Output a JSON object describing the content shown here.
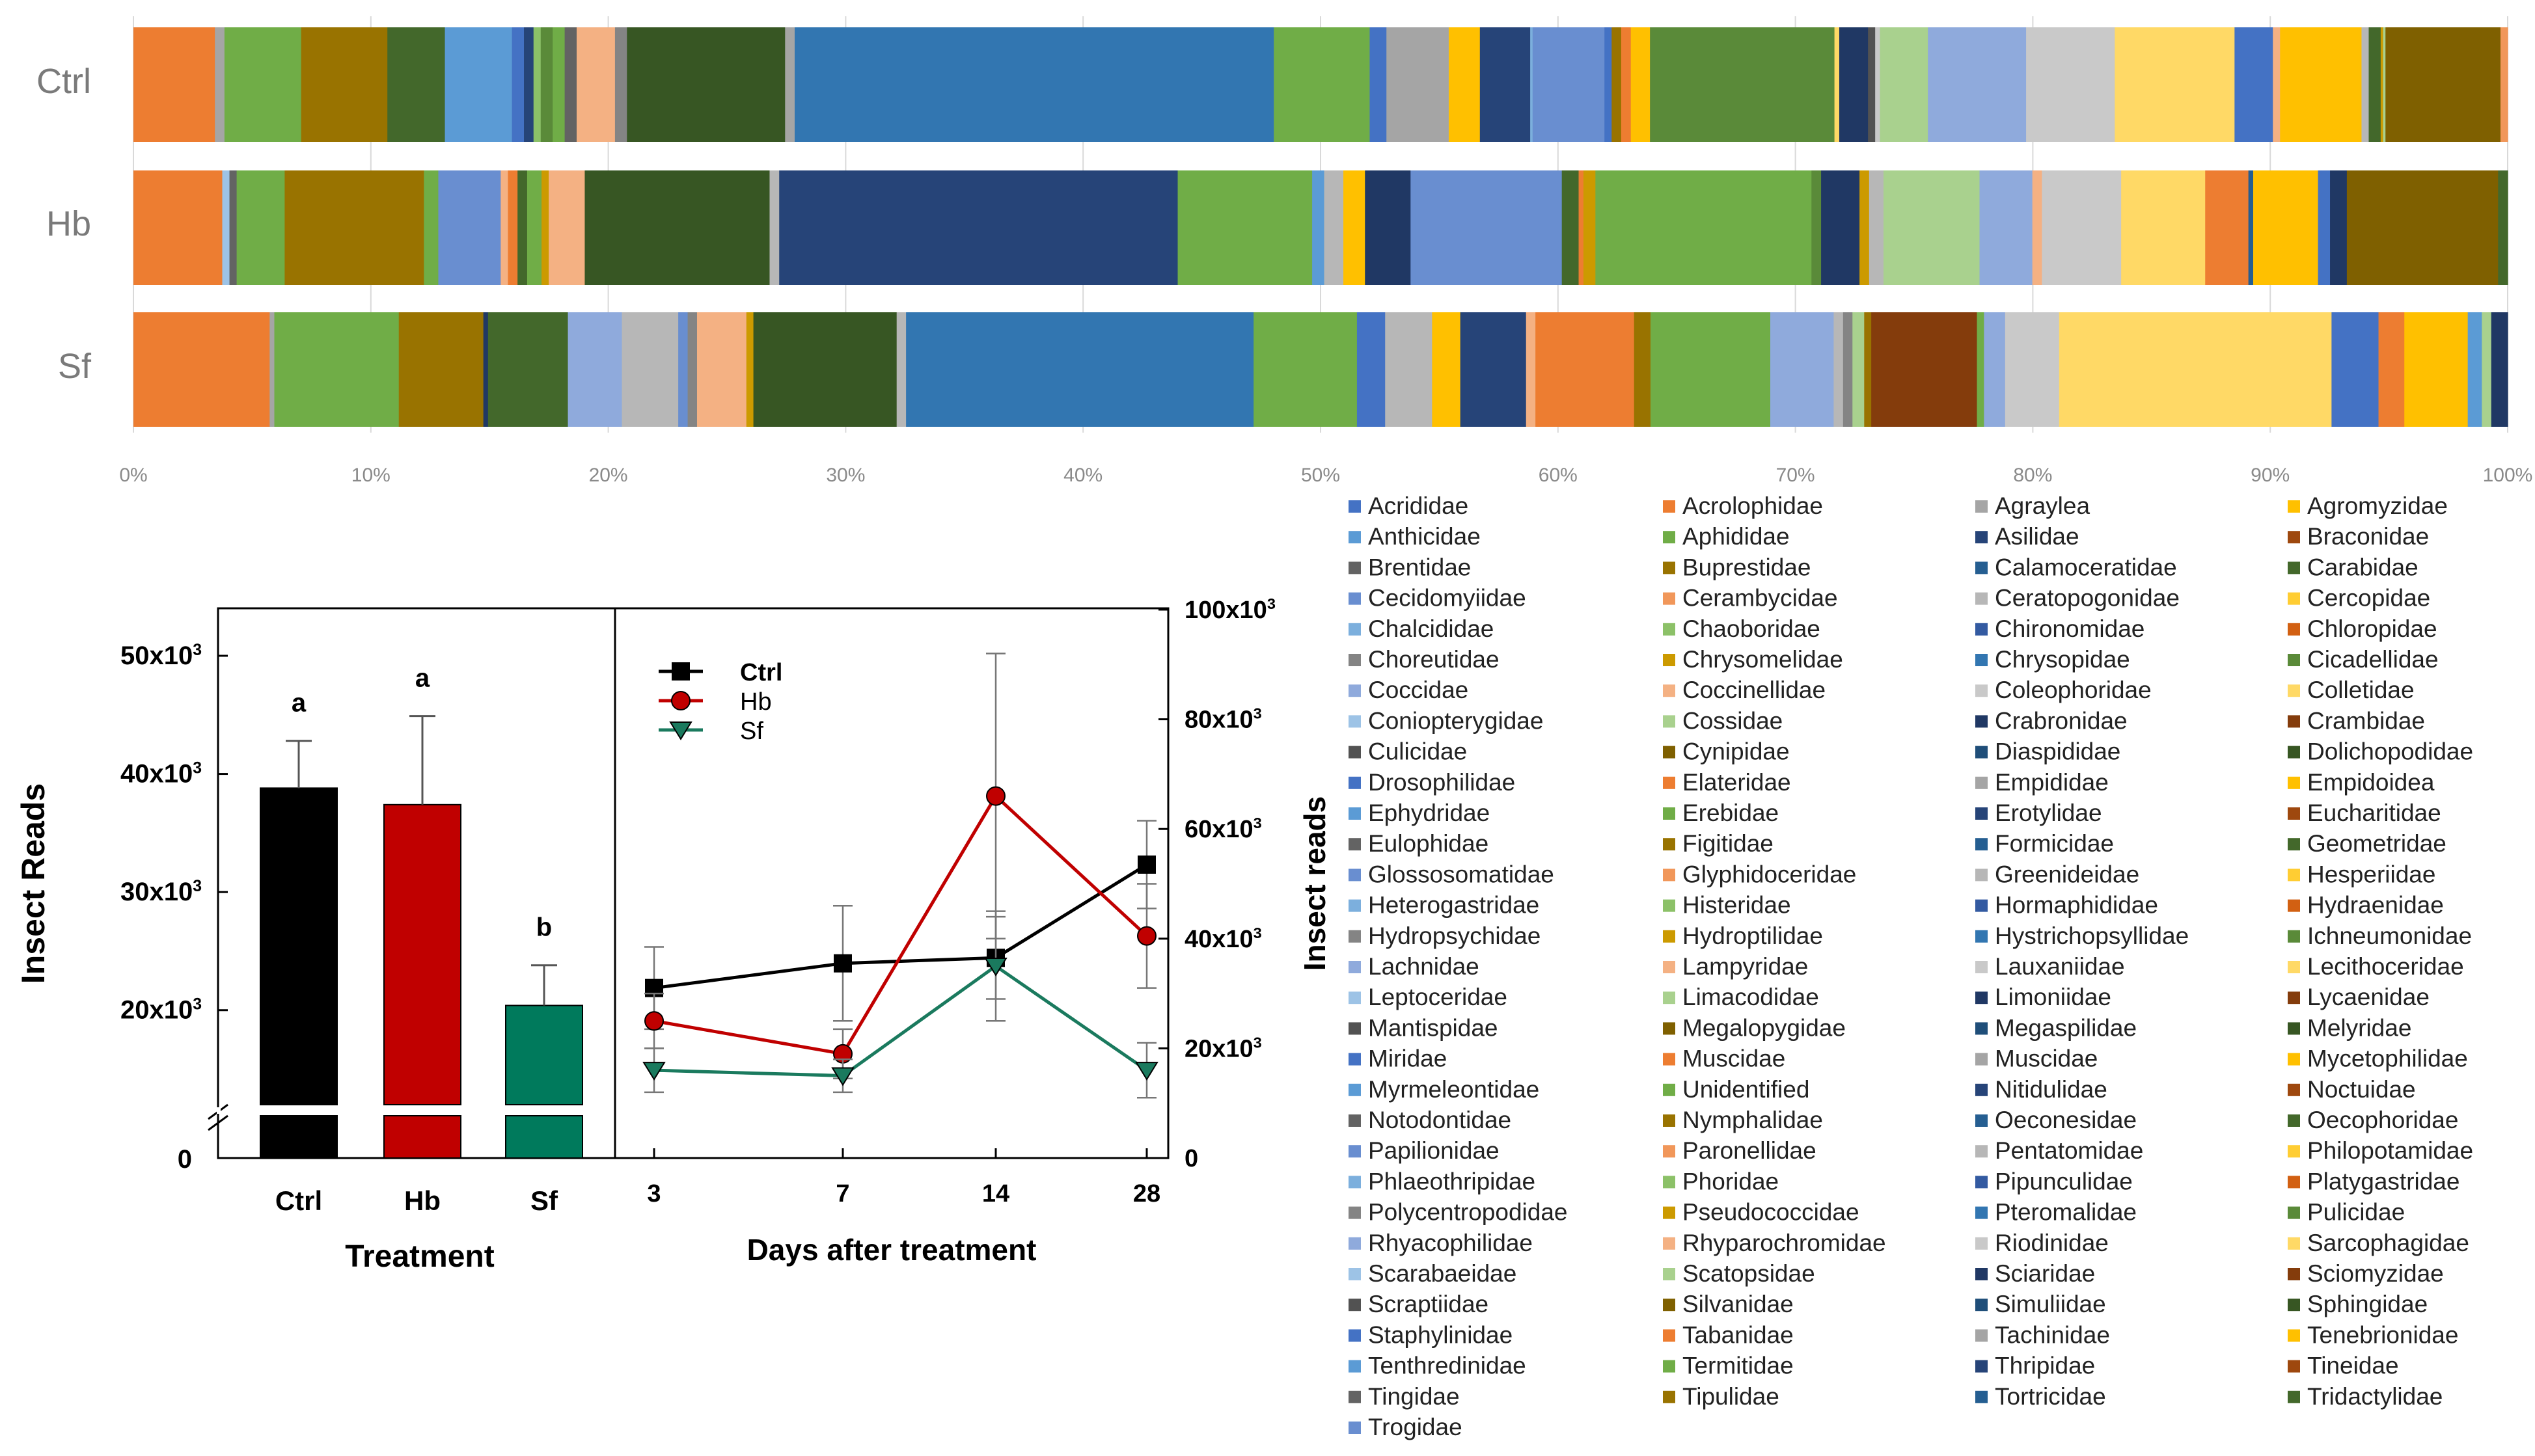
{
  "chart_data": [
    {
      "type": "stacked-bar-horizontal",
      "title": "",
      "xlabel": "",
      "ylabel": "",
      "xlim": [
        0,
        100
      ],
      "xticks": [
        "0%",
        "10%",
        "20%",
        "30%",
        "40%",
        "50%",
        "60%",
        "70%",
        "80%",
        "90%",
        "100%"
      ],
      "rows": [
        "Ctrl",
        "Hb",
        "Sf"
      ],
      "palette": [
        "#4472C4",
        "#ED7D31",
        "#A5A5A5",
        "#FFC000",
        "#5B9BD5",
        "#70AD47",
        "#264478",
        "#9E480E",
        "#636363",
        "#997300",
        "#255E91",
        "#43682B",
        "#698ED0",
        "#F1975A",
        "#B7B7B7",
        "#FFCD33",
        "#7CAFDD",
        "#8CC168",
        "#335AA1",
        "#D26012",
        "#848484",
        "#CC9A00",
        "#3276B1",
        "#5A8A39",
        "#8FAADC",
        "#F4B183",
        "#C9C9C9",
        "#FFD966",
        "#9DC3E6",
        "#A9D18E",
        "#203864",
        "#843C0C",
        "#525252",
        "#7F6000",
        "#1F4E79",
        "#375623"
      ],
      "segments": {
        "Ctrl": [
          [
            1,
            3.0
          ],
          [
            1,
            0.4
          ],
          [
            2,
            0.4
          ],
          [
            5,
            3.2
          ],
          [
            9,
            3.6
          ],
          [
            11,
            2.4
          ],
          [
            4,
            2.8
          ],
          [
            0,
            0.5
          ],
          [
            6,
            0.4
          ],
          [
            17,
            0.3
          ],
          [
            23,
            0.5
          ],
          [
            5,
            0.5
          ],
          [
            8,
            0.5
          ],
          [
            25,
            1.6
          ],
          [
            20,
            0.5
          ],
          [
            35,
            6.6
          ],
          [
            2,
            0.4
          ],
          [
            22,
            20.0
          ],
          [
            5,
            4.0
          ],
          [
            0,
            0.7
          ],
          [
            2,
            2.6
          ],
          [
            3,
            1.3
          ],
          [
            6,
            2.1
          ],
          [
            16,
            0.1
          ],
          [
            12,
            3.0
          ],
          [
            0,
            0.3
          ],
          [
            9,
            0.4
          ],
          [
            1,
            0.4
          ],
          [
            3,
            0.8
          ],
          [
            23,
            7.7
          ],
          [
            27,
            0.2
          ],
          [
            30,
            1.2
          ],
          [
            32,
            0.3
          ],
          [
            26,
            0.2
          ],
          [
            29,
            2.0
          ],
          [
            24,
            4.1
          ],
          [
            26,
            3.7
          ],
          [
            27,
            5.0
          ],
          [
            0,
            1.6
          ],
          [
            25,
            0.3
          ],
          [
            3,
            3.4
          ],
          [
            14,
            0.3
          ],
          [
            11,
            0.5
          ],
          [
            21,
            0.1
          ],
          [
            29,
            0.1
          ],
          [
            33,
            4.8
          ],
          [
            13,
            0.3
          ]
        ],
        "Hb": [
          [
            1,
            3.7
          ],
          [
            28,
            0.3
          ],
          [
            8,
            0.3
          ],
          [
            5,
            2.0
          ],
          [
            9,
            5.8
          ],
          [
            5,
            0.6
          ],
          [
            12,
            2.6
          ],
          [
            25,
            0.3
          ],
          [
            1,
            0.4
          ],
          [
            11,
            0.4
          ],
          [
            5,
            0.6
          ],
          [
            21,
            0.3
          ],
          [
            25,
            1.5
          ],
          [
            35,
            7.7
          ],
          [
            14,
            0.4
          ],
          [
            6,
            16.6
          ],
          [
            5,
            5.6
          ],
          [
            4,
            0.5
          ],
          [
            14,
            0.8
          ],
          [
            3,
            0.9
          ],
          [
            30,
            1.9
          ],
          [
            12,
            0.2
          ],
          [
            12,
            6.1
          ],
          [
            11,
            0.7
          ],
          [
            1,
            0.2
          ],
          [
            21,
            0.5
          ],
          [
            5,
            9.0
          ],
          [
            23,
            0.4
          ],
          [
            30,
            1.6
          ],
          [
            21,
            0.4
          ],
          [
            14,
            0.6
          ],
          [
            29,
            4.0
          ],
          [
            24,
            2.2
          ],
          [
            25,
            0.4
          ],
          [
            26,
            3.3
          ],
          [
            27,
            3.5
          ],
          [
            1,
            1.8
          ],
          [
            10,
            0.2
          ],
          [
            3,
            2.7
          ],
          [
            0,
            0.5
          ],
          [
            30,
            0.7
          ],
          [
            33,
            6.3
          ],
          [
            11,
            0.4
          ]
        ],
        "Sf": [
          [
            1,
            5.5
          ],
          [
            1,
            0.3
          ],
          [
            2,
            0.2
          ],
          [
            5,
            5.3
          ],
          [
            9,
            3.6
          ],
          [
            30,
            0.2
          ],
          [
            11,
            3.4
          ],
          [
            24,
            2.3
          ],
          [
            14,
            2.4
          ],
          [
            12,
            0.4
          ],
          [
            20,
            0.4
          ],
          [
            25,
            2.1
          ],
          [
            21,
            0.3
          ],
          [
            35,
            6.1
          ],
          [
            14,
            0.4
          ],
          [
            22,
            14.8
          ],
          [
            5,
            4.4
          ],
          [
            0,
            1.2
          ],
          [
            14,
            2.0
          ],
          [
            3,
            1.2
          ],
          [
            6,
            2.8
          ],
          [
            25,
            0.4
          ],
          [
            1,
            4.2
          ],
          [
            9,
            0.7
          ],
          [
            5,
            5.1
          ],
          [
            24,
            2.7
          ],
          [
            14,
            0.4
          ],
          [
            20,
            0.4
          ],
          [
            29,
            0.5
          ],
          [
            9,
            0.3
          ],
          [
            31,
            4.5
          ],
          [
            5,
            0.3
          ],
          [
            24,
            0.9
          ],
          [
            26,
            2.3
          ],
          [
            27,
            11.6
          ],
          [
            0,
            2.0
          ],
          [
            1,
            1.1
          ],
          [
            3,
            2.7
          ],
          [
            4,
            0.6
          ],
          [
            29,
            0.4
          ],
          [
            30,
            0.7
          ]
        ]
      },
      "legend": [
        "Acrididae",
        "Acrolophidae",
        "Agraylea",
        "Agromyzidae",
        "Anthicidae",
        "Aphididae",
        "Asilidae",
        "Braconidae",
        "Brentidae",
        "Buprestidae",
        "Calamoceratidae",
        "Carabidae",
        "Cecidomyiidae",
        "Cerambycidae",
        "Ceratopogonidae",
        "Cercopidae",
        "Chalcididae",
        "Chaoboridae",
        "Chironomidae",
        "Chloropidae",
        "Choreutidae",
        "Chrysomelidae",
        "Chrysopidae",
        "Cicadellidae",
        "Coccidae",
        "Coccinellidae",
        "Coleophoridae",
        "Colletidae",
        "Coniopterygidae",
        "Cossidae",
        "Crabronidae",
        "Crambidae",
        "Culicidae",
        "Cynipidae",
        "Diaspididae",
        "Dolichopodidae",
        "Drosophilidae",
        "Elateridae",
        "Empididae",
        "Empidoidea",
        "Ephydridae",
        "Erebidae",
        "Erotylidae",
        "Eucharitidae",
        "Eulophidae",
        "Figitidae",
        "Formicidae",
        "Geometridae",
        "Glossosomatidae",
        "Glyphidoceridae",
        "Greenideidae",
        "Hesperiidae",
        "Heterogastridae",
        "Histeridae",
        "Hormaphididae",
        "Hydraenidae",
        "Hydropsychidae",
        "Hydroptilidae",
        "Hystrichopsyllidae",
        "Ichneumonidae",
        "Lachnidae",
        "Lampyridae",
        "Lauxaniidae",
        "Lecithoceridae",
        "Leptoceridae",
        "Limacodidae",
        "Limoniidae",
        "Lycaenidae",
        "Mantispidae",
        "Megalopygidae",
        "Megaspilidae",
        "Melyridae",
        "Miridae",
        "Muscidae",
        "Muscidae",
        "Mycetophilidae",
        "Myrmeleontidae",
        "Unidentified",
        "Nitidulidae",
        "Noctuidae",
        "Notodontidae",
        "Nymphalidae",
        "Oeconesidae",
        "Oecophoridae",
        "Papilionidae",
        "Paronellidae",
        "Pentatomidae",
        "Philopotamidae",
        "Phlaeothripidae",
        "Phoridae",
        "Pipunculidae",
        "Platygastridae",
        "Polycentropodidae",
        "Pseudococcidae",
        "Pteromalidae",
        "Pulicidae",
        "Rhyacophilidae",
        "Rhyparochromidae",
        "Riodinidae",
        "Sarcophagidae",
        "Scarabaeidae",
        "Scatopsidae",
        "Sciaridae",
        "Sciomyzidae",
        "Scraptiidae",
        "Silvanidae",
        "Simuliidae",
        "Sphingidae",
        "Staphylinidae",
        "Tabanidae",
        "Tachinidae",
        "Tenebrionidae",
        "Tenthredinidae",
        "Termitidae",
        "Thripidae",
        "Tineidae",
        "Tingidae",
        "Tipulidae",
        "Tortricidae",
        "Tridactylidae",
        "Trogidae"
      ]
    },
    {
      "type": "bar",
      "categories": [
        "Ctrl",
        "Hb",
        "Sf"
      ],
      "values": [
        38800,
        37400,
        20400
      ],
      "errors": [
        4000,
        7500,
        3400
      ],
      "colors": [
        "#000000",
        "#C00000",
        "#007A5C"
      ],
      "letters": [
        "a",
        "a",
        "b"
      ],
      "ylabel": "Insect Reads",
      "xlabel": "Treatment",
      "ylim_break": [
        0,
        12000,
        50000
      ],
      "yticks": [
        "0",
        "20x10³",
        "30x10³",
        "40x10³",
        "50x10³"
      ]
    },
    {
      "type": "line",
      "x": [
        "3",
        "7",
        "14",
        "28"
      ],
      "series": [
        {
          "name": "Ctrl",
          "marker": "square",
          "color": "#000000",
          "values": [
            31000,
            35500,
            36500,
            53500
          ],
          "errors": [
            7500,
            10500,
            7500,
            8000
          ]
        },
        {
          "name": "Hb",
          "marker": "circle",
          "color": "#C00000",
          "values": [
            25000,
            19000,
            66000,
            40500
          ],
          "errors": [
            5000,
            4500,
            26000,
            9500
          ]
        },
        {
          "name": "Sf",
          "marker": "triangle-down",
          "color": "#1A7A5E",
          "values": [
            16000,
            15000,
            35000,
            16000
          ],
          "errors": [
            4000,
            3000,
            10000,
            5000
          ]
        }
      ],
      "xlabel": "Days after treatment",
      "ylabel": "Insect reads",
      "ylim": [
        0,
        100000
      ],
      "yticks": [
        "0",
        "20x10³",
        "40x10³",
        "60x10³",
        "80x10³",
        "100x10³"
      ]
    }
  ]
}
